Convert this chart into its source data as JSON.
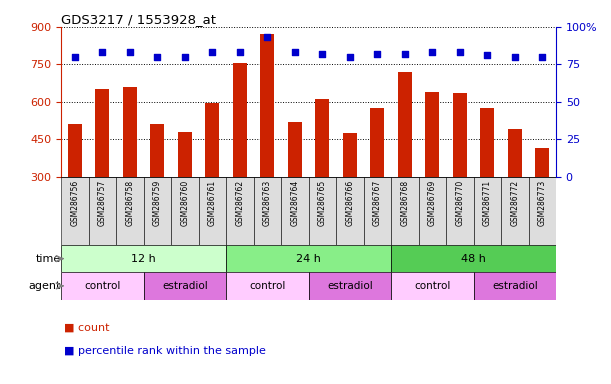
{
  "title": "GDS3217 / 1553928_at",
  "samples": [
    "GSM286756",
    "GSM286757",
    "GSM286758",
    "GSM286759",
    "GSM286760",
    "GSM286761",
    "GSM286762",
    "GSM286763",
    "GSM286764",
    "GSM286765",
    "GSM286766",
    "GSM286767",
    "GSM286768",
    "GSM286769",
    "GSM286770",
    "GSM286771",
    "GSM286772",
    "GSM286773"
  ],
  "counts": [
    510,
    650,
    660,
    510,
    480,
    595,
    755,
    870,
    520,
    610,
    475,
    575,
    720,
    640,
    635,
    575,
    490,
    415
  ],
  "percentile_ranks": [
    80,
    83,
    83,
    80,
    80,
    83,
    83,
    93,
    83,
    82,
    80,
    82,
    82,
    83,
    83,
    81,
    80,
    80
  ],
  "bar_color": "#cc2200",
  "dot_color": "#0000cc",
  "ylim_left": [
    300,
    900
  ],
  "yticks_left": [
    300,
    450,
    600,
    750,
    900
  ],
  "ylim_right": [
    0,
    100
  ],
  "yticks_right": [
    0,
    25,
    50,
    75,
    100
  ],
  "time_groups": [
    {
      "label": "12 h",
      "start": 0,
      "end": 6,
      "color": "#ccffcc"
    },
    {
      "label": "24 h",
      "start": 6,
      "end": 12,
      "color": "#88ee88"
    },
    {
      "label": "48 h",
      "start": 12,
      "end": 18,
      "color": "#55cc55"
    }
  ],
  "agent_groups": [
    {
      "label": "control",
      "start": 0,
      "end": 3,
      "color": "#ffccff"
    },
    {
      "label": "estradiol",
      "start": 3,
      "end": 6,
      "color": "#dd77dd"
    },
    {
      "label": "control",
      "start": 6,
      "end": 9,
      "color": "#ffccff"
    },
    {
      "label": "estradiol",
      "start": 9,
      "end": 12,
      "color": "#dd77dd"
    },
    {
      "label": "control",
      "start": 12,
      "end": 15,
      "color": "#ffccff"
    },
    {
      "label": "estradiol",
      "start": 15,
      "end": 18,
      "color": "#dd77dd"
    }
  ],
  "bg_color": "#ffffff",
  "left_tick_color": "#cc2200",
  "right_tick_color": "#0000cc",
  "xticklabel_bg": "#dddddd"
}
